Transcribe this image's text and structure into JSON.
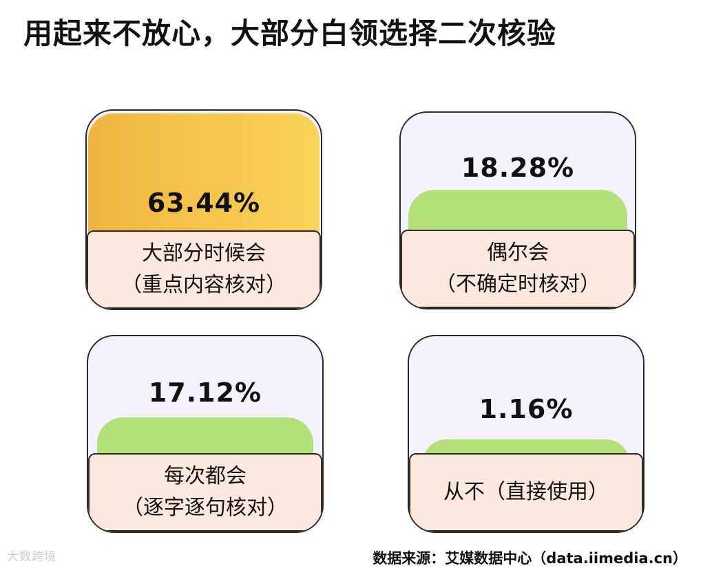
{
  "title": "用起来不放心，大部分白领选择二次核验",
  "source": "数据来源：艾媒数据中心（data.iimedia.cn）",
  "watermark": "大数跨境",
  "colors": {
    "gold_fill_start": "#f1b53e",
    "gold_fill_end": "#f9d456",
    "green_fill": "#b4e07a",
    "card_bg": "#f4f2fb",
    "label_bg": "#fce8dc",
    "border": "#2a2a2a"
  },
  "chart_data": {
    "type": "bar",
    "title": "用起来不放心，大部分白领选择二次核验",
    "unit": "%",
    "categories": [
      "大部分时候会（重点内容核对）",
      "偶尔会（不确定时核对）",
      "每次都会（逐字逐句核对）",
      "从不（直接使用）"
    ],
    "values": [
      63.44,
      18.28,
      17.12,
      1.16
    ],
    "cards": [
      {
        "value": 63.44,
        "value_label": "63.44%",
        "label_lines": [
          "大部分时候会",
          "（重点内容核对）"
        ],
        "fill": "gold"
      },
      {
        "value": 18.28,
        "value_label": "18.28%",
        "label_lines": [
          "偶尔会",
          "（不确定时核对）"
        ],
        "fill": "green"
      },
      {
        "value": 17.12,
        "value_label": "17.12%",
        "label_lines": [
          "每次都会",
          "（逐字逐句核对）"
        ],
        "fill": "green"
      },
      {
        "value": 1.16,
        "value_label": "1.16%",
        "label_lines": [
          "从不（直接使用）"
        ],
        "fill": "green"
      }
    ]
  }
}
